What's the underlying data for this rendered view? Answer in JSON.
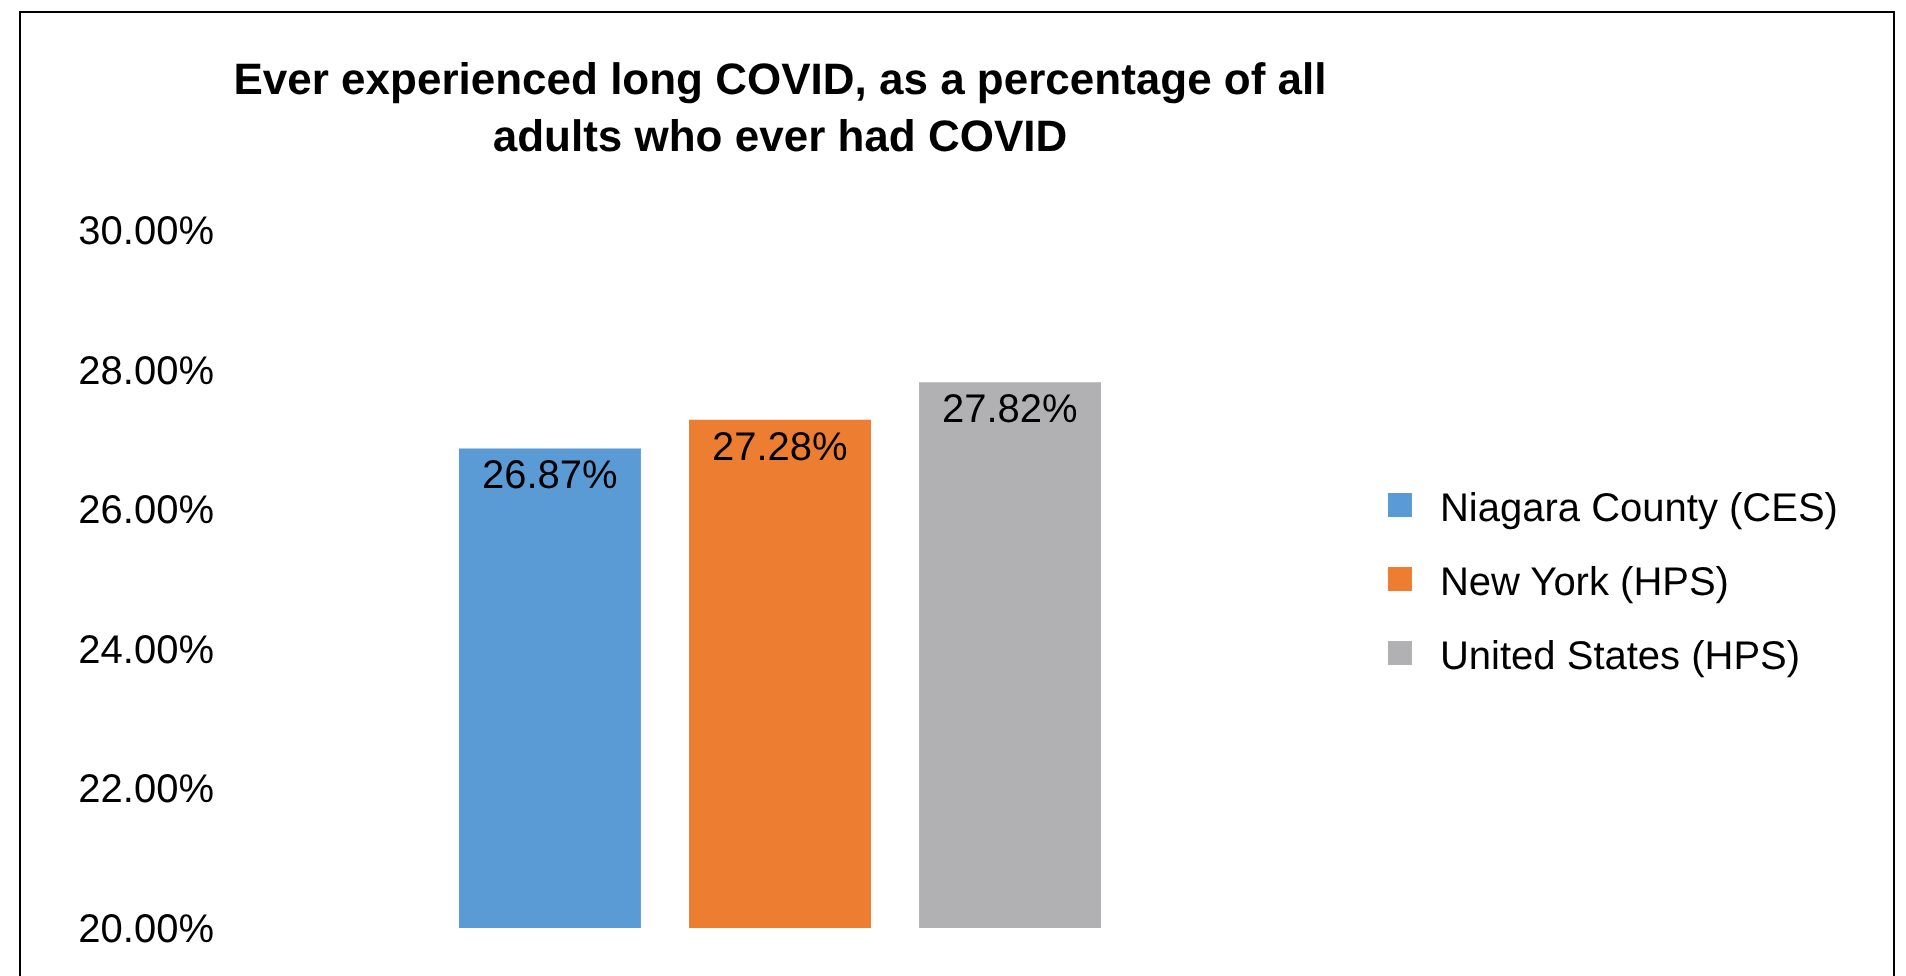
{
  "chart_data": {
    "type": "bar",
    "title": "Ever experienced long COVID, as a percentage of all adults who ever had COVID",
    "categories": [
      null
    ],
    "series": [
      {
        "name": "Niagara County (CES)",
        "color": "#5b9bd5",
        "values": [
          26.87
        ],
        "value_labels": [
          "26.87%"
        ]
      },
      {
        "name": "New York (HPS)",
        "color": "#ed7d31",
        "values": [
          27.28
        ],
        "value_labels": [
          "27.28%"
        ]
      },
      {
        "name": "United States (HPS)",
        "color": "#b1b1b3",
        "values": [
          27.82
        ],
        "value_labels": [
          "27.82%"
        ]
      }
    ],
    "ylim": [
      20,
      30
    ],
    "yticks": [
      {
        "value": 20,
        "label": "20.00%"
      },
      {
        "value": 22,
        "label": "22.00%"
      },
      {
        "value": 24,
        "label": "24.00%"
      },
      {
        "value": 26,
        "label": "26.00%"
      },
      {
        "value": 28,
        "label": "28.00%"
      },
      {
        "value": 30,
        "label": "30.00%"
      }
    ],
    "legend": "right",
    "tick_labels": "y"
  }
}
